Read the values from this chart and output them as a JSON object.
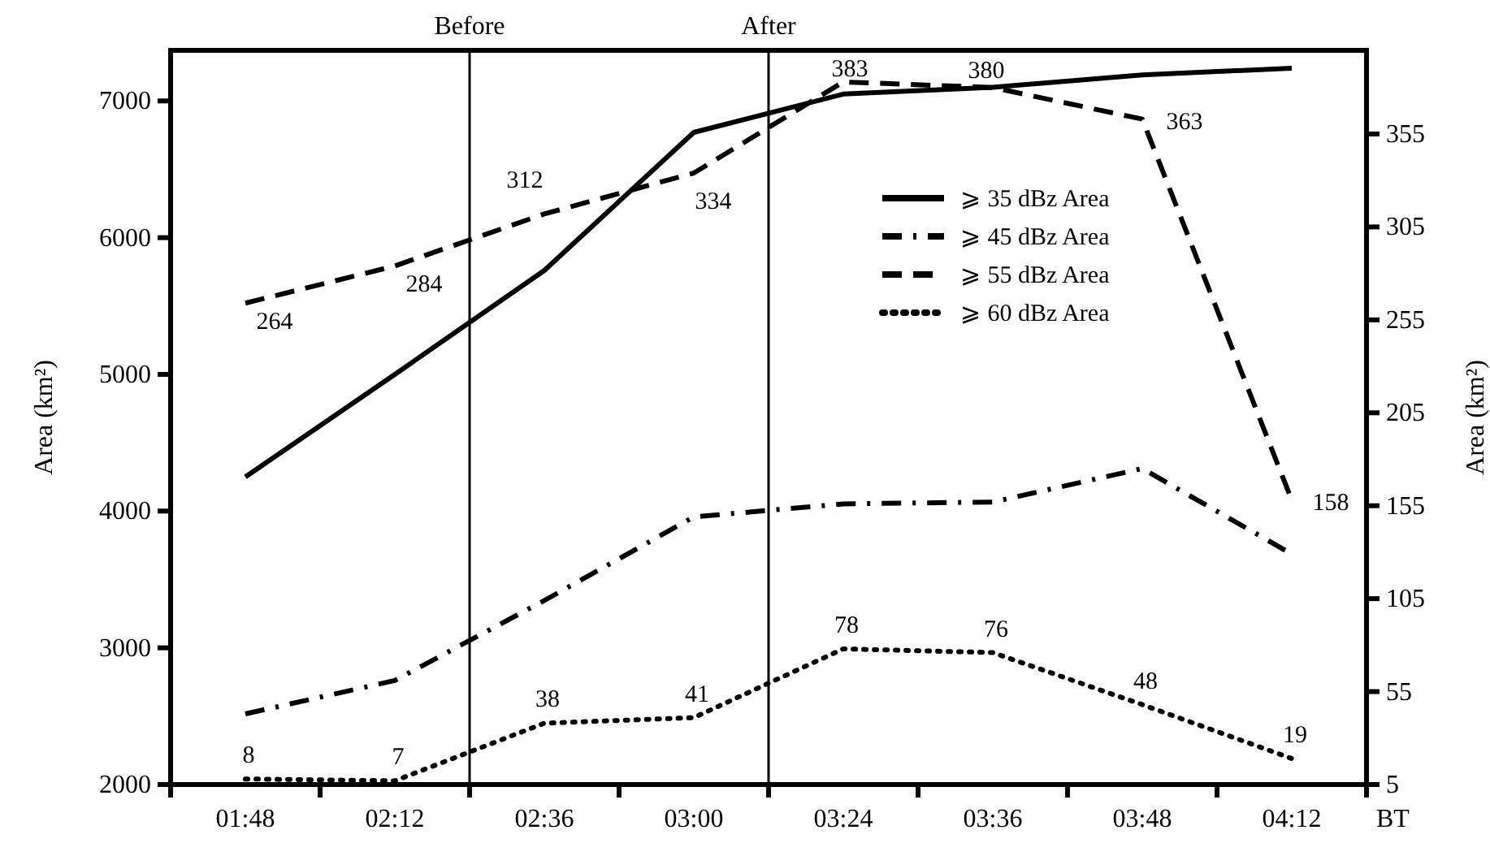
{
  "chart_data": {
    "type": "line",
    "xlabel": "BT",
    "ylabel": "Area (km²)",
    "y2label": "Area (km²)",
    "categories": [
      "01:48",
      "02:12",
      "02:36",
      "03:00",
      "03:24",
      "03:36",
      "03:48",
      "04:12"
    ],
    "ylim": [
      2000,
      7370
    ],
    "yticks": [
      2000,
      3000,
      4000,
      5000,
      6000,
      7000
    ],
    "y2lim": [
      5,
      400
    ],
    "y2ticks": [
      5,
      55,
      105,
      155,
      205,
      255,
      305,
      355
    ],
    "legend": "top right",
    "annotations": [
      "Before",
      "After"
    ],
    "series": [
      {
        "name": "⩾ 35 dBz Area",
        "color": "#000000",
        "line_style": "solid",
        "values": [
          4250,
          5000,
          5760,
          6770,
          7050,
          7100,
          7190,
          7240
        ]
      },
      {
        "name": "⩾ 45 dBz Area",
        "color": "#000000",
        "line_style": "dashdot",
        "axis": "y2",
        "values": [
          43,
          61,
          104,
          149,
          156,
          157,
          175,
          129
        ]
      },
      {
        "name": "⩾ 55 dBz Area",
        "color": "#000000",
        "line_style": "dashed",
        "axis": "y2",
        "values": [
          264,
          284,
          312,
          334,
          383,
          380,
          363,
          158
        ],
        "value_labels": [
          "264",
          "284",
          "312",
          "334",
          "383",
          "380",
          "363",
          "158"
        ]
      },
      {
        "name": "⩾ 60 dBz Area",
        "color": "#000000",
        "line_style": "dotted",
        "axis": "y2",
        "values": [
          8,
          7,
          38,
          41,
          78,
          76,
          48,
          19
        ],
        "value_labels": [
          "8",
          "7",
          "38",
          "41",
          "78",
          "76",
          "48",
          "19"
        ]
      }
    ]
  }
}
